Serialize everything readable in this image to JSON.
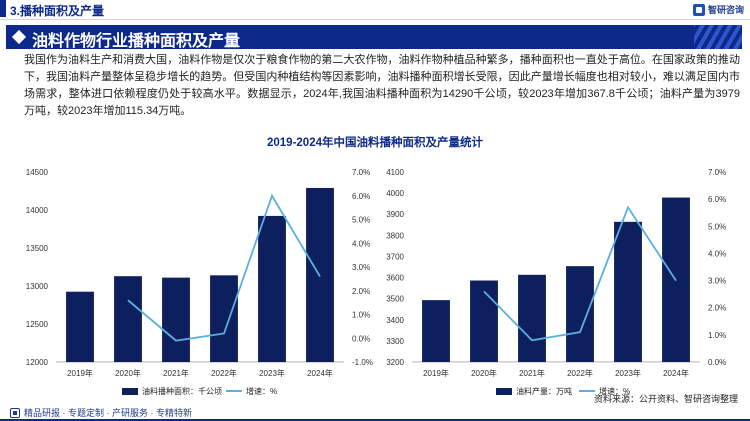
{
  "header": {
    "section_title": "3.播种面积及产量",
    "logo_text": "智研咨询"
  },
  "banner": {
    "title": "油料作物行业播种面积及产量"
  },
  "body_text": "我国作为油料生产和消费大国，油料作物是仅次于粮食作物的第二大农作物，油料作物种植品种繁多，播种面积也一直处于高位。在国家政策的推动下，我国油料产量整体呈稳步增长的趋势。但受国内种植结构等因素影响，油料播种面积增长受限，因此产量增长幅度也相对较小，难以满足国内市场需求，整体进口依赖程度仍处于较高水平。数据显示，2024年,我国油料播种面积为14290千公顷，较2023年增加367.8千公顷；油料产量为3979万吨，较2023年增加115.34万吨。",
  "chart_title": "2019-2024年中国油料播种面积及产量统计",
  "footer": {
    "note": "精品研报 · 专题定制 · 产研服务 · 专精特新",
    "source": "资料来源：公开资料、智研咨询整理"
  },
  "colors": {
    "primary": "#0d2a8a",
    "bar": "#0d1f5c",
    "line": "#5aaee0"
  },
  "chart_data": [
    {
      "type": "bar",
      "categories": [
        "2019年",
        "2020年",
        "2021年",
        "2022年",
        "2023年",
        "2024年"
      ],
      "series": [
        {
          "name": "油料播种面积：千公顷",
          "type": "bar",
          "axis": "left",
          "values": [
            12925,
            13129,
            13110,
            13140,
            13922,
            14290
          ]
        },
        {
          "name": "增速：%",
          "type": "line",
          "axis": "right",
          "values": [
            null,
            1.6,
            -0.1,
            0.2,
            6.0,
            2.6
          ]
        }
      ],
      "ylim_left": [
        12000,
        14500
      ],
      "yticks_left": [
        "12000",
        "12500",
        "13000",
        "13500",
        "14000",
        "14500"
      ],
      "ylim_right": [
        -1.0,
        7.0
      ],
      "yticks_right": [
        "-1.0%",
        "0.0%",
        "1.0%",
        "2.0%",
        "3.0%",
        "4.0%",
        "5.0%",
        "6.0%",
        "7.0%"
      ],
      "legend_position": "bottom",
      "grid": false
    },
    {
      "type": "bar",
      "categories": [
        "2019年",
        "2020年",
        "2021年",
        "2022年",
        "2023年",
        "2024年"
      ],
      "series": [
        {
          "name": "油料产量：万吨",
          "type": "bar",
          "axis": "left",
          "values": [
            3493,
            3586,
            3613,
            3654,
            3864,
            3979
          ]
        },
        {
          "name": "增速：%",
          "type": "line",
          "axis": "right",
          "values": [
            null,
            2.6,
            0.8,
            1.1,
            5.7,
            3.0
          ]
        }
      ],
      "ylim_left": [
        3200,
        4100
      ],
      "yticks_left": [
        "3200",
        "3300",
        "3400",
        "3500",
        "3600",
        "3700",
        "3800",
        "3900",
        "4000",
        "4100"
      ],
      "ylim_right": [
        0.0,
        7.0
      ],
      "yticks_right": [
        "0.0%",
        "1.0%",
        "2.0%",
        "3.0%",
        "4.0%",
        "5.0%",
        "6.0%",
        "7.0%"
      ],
      "legend_position": "bottom",
      "grid": false
    }
  ]
}
